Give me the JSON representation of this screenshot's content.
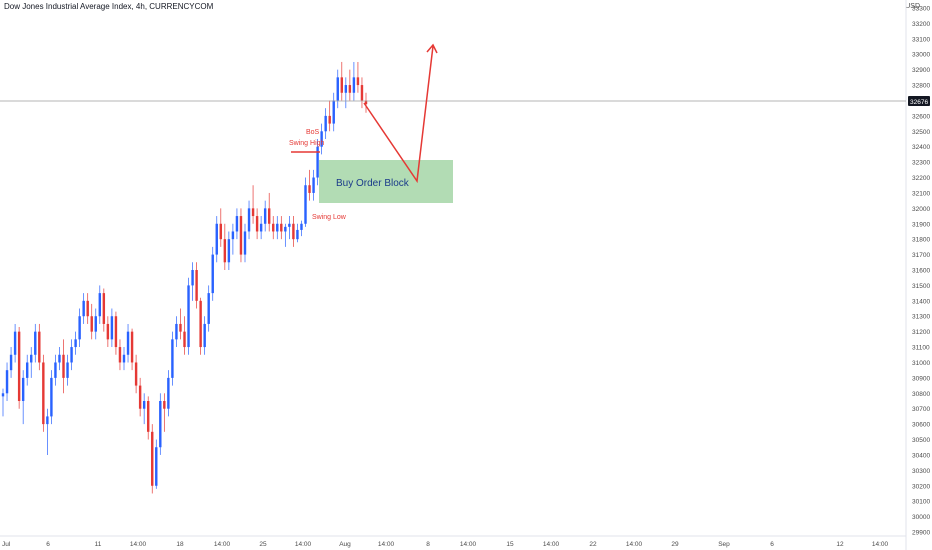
{
  "header": {
    "title": "Dow Jones Industrial Average Index, 4h, CURRENCYCOM",
    "currency": "USD"
  },
  "colors": {
    "up": "#2962ff",
    "down": "#e53935",
    "order_block_fill": "#a5d6a7",
    "annotation": "#e53935",
    "current_price_line": "#9e9e9e",
    "current_price_tag": "#131722"
  },
  "chart_data": {
    "type": "candlestick",
    "symbol": "Dow Jones Industrial Average Index",
    "timeframe": "4h",
    "ylim": [
      29900,
      33300
    ],
    "y_ticks": [
      "33300",
      "33200",
      "33100",
      "33000",
      "32900",
      "32800",
      "32700",
      "32600",
      "32500",
      "32400",
      "32300",
      "32200",
      "32100",
      "32000",
      "31900",
      "31800",
      "31700",
      "31600",
      "31500",
      "31400",
      "31300",
      "31200",
      "31100",
      "31000",
      "30900",
      "30800",
      "30700",
      "30600",
      "30500",
      "30400",
      "30300",
      "30200",
      "30100",
      "30000",
      "29900"
    ],
    "x_ticks": [
      "Jul",
      "6",
      "11",
      "14:00",
      "18",
      "14:00",
      "25",
      "14:00",
      "Aug",
      "14:00",
      "8",
      "14:00",
      "15",
      "14:00",
      "22",
      "14:00",
      "29",
      "Sep",
      "6",
      "12",
      "14:00"
    ],
    "current_price": 32676,
    "current_price_label": "32676",
    "candles_approx": [
      [
        30780,
        30830,
        30650,
        30800
      ],
      [
        30800,
        31000,
        30750,
        30950
      ],
      [
        30950,
        31100,
        30900,
        31050
      ],
      [
        31050,
        31250,
        31000,
        31200
      ],
      [
        31200,
        31230,
        30700,
        30750
      ],
      [
        30750,
        30950,
        30600,
        30900
      ],
      [
        30900,
        31050,
        30850,
        31000
      ],
      [
        31000,
        31100,
        30900,
        31050
      ],
      [
        31050,
        31250,
        31000,
        31200
      ],
      [
        31200,
        31250,
        30950,
        31000
      ],
      [
        31000,
        31050,
        30550,
        30600
      ],
      [
        30600,
        30700,
        30400,
        30650
      ],
      [
        30650,
        30950,
        30600,
        30900
      ],
      [
        30900,
        31050,
        30850,
        31000
      ],
      [
        31000,
        31100,
        30950,
        31050
      ],
      [
        31050,
        31150,
        30800,
        30900
      ],
      [
        30900,
        31050,
        30850,
        31000
      ],
      [
        31000,
        31150,
        30950,
        31100
      ],
      [
        31100,
        31200,
        31050,
        31150
      ],
      [
        31150,
        31350,
        31100,
        31300
      ],
      [
        31300,
        31450,
        31250,
        31400
      ],
      [
        31400,
        31450,
        31250,
        31300
      ],
      [
        31300,
        31380,
        31150,
        31200
      ],
      [
        31200,
        31350,
        31150,
        31300
      ],
      [
        31300,
        31500,
        31250,
        31450
      ],
      [
        31450,
        31480,
        31200,
        31250
      ],
      [
        31250,
        31300,
        31100,
        31150
      ],
      [
        31150,
        31350,
        31100,
        31300
      ],
      [
        31300,
        31330,
        31050,
        31100
      ],
      [
        31100,
        31150,
        30950,
        31000
      ],
      [
        31000,
        31100,
        30950,
        31050
      ],
      [
        31050,
        31250,
        31000,
        31200
      ],
      [
        31200,
        31220,
        30950,
        31000
      ],
      [
        31000,
        31050,
        30800,
        30850
      ],
      [
        30850,
        30900,
        30650,
        30700
      ],
      [
        30700,
        30800,
        30600,
        30750
      ],
      [
        30750,
        30780,
        30500,
        30550
      ],
      [
        30550,
        30600,
        30150,
        30200
      ],
      [
        30200,
        30500,
        30180,
        30450
      ],
      [
        30450,
        30800,
        30400,
        30750
      ],
      [
        30750,
        30800,
        30550,
        30700
      ],
      [
        30700,
        30950,
        30650,
        30900
      ],
      [
        30900,
        31200,
        30850,
        31150
      ],
      [
        31150,
        31300,
        31100,
        31250
      ],
      [
        31250,
        31350,
        31150,
        31200
      ],
      [
        31200,
        31300,
        31050,
        31100
      ],
      [
        31100,
        31550,
        31050,
        31500
      ],
      [
        31500,
        31650,
        31400,
        31600
      ],
      [
        31600,
        31650,
        31350,
        31400
      ],
      [
        31400,
        31420,
        31050,
        31100
      ],
      [
        31100,
        31300,
        31050,
        31250
      ],
      [
        31250,
        31500,
        31200,
        31450
      ],
      [
        31450,
        31750,
        31400,
        31700
      ],
      [
        31700,
        31950,
        31650,
        31900
      ],
      [
        31900,
        32000,
        31750,
        31800
      ],
      [
        31800,
        31900,
        31600,
        31650
      ],
      [
        31650,
        31850,
        31600,
        31800
      ],
      [
        31800,
        31900,
        31700,
        31850
      ],
      [
        31850,
        32000,
        31800,
        31950
      ],
      [
        31950,
        32000,
        31650,
        31700
      ],
      [
        31700,
        31900,
        31650,
        31850
      ],
      [
        31850,
        32050,
        31800,
        32000
      ],
      [
        32000,
        32150,
        31900,
        31950
      ],
      [
        31950,
        32000,
        31800,
        31850
      ],
      [
        31850,
        31950,
        31800,
        31900
      ],
      [
        31900,
        32050,
        31850,
        32000
      ],
      [
        32000,
        32100,
        31850,
        31900
      ],
      [
        31900,
        31950,
        31800,
        31850
      ],
      [
        31850,
        31950,
        31800,
        31900
      ],
      [
        31900,
        31950,
        31800,
        31850
      ],
      [
        31850,
        31900,
        31750,
        31880
      ],
      [
        31880,
        31950,
        31800,
        31900
      ],
      [
        31900,
        31950,
        31750,
        31800
      ],
      [
        31800,
        31900,
        31780,
        31860
      ],
      [
        31860,
        31920,
        31820,
        31900
      ],
      [
        31900,
        32200,
        31880,
        32150
      ],
      [
        32150,
        32250,
        32050,
        32100
      ],
      [
        32100,
        32250,
        32050,
        32200
      ],
      [
        32200,
        32450,
        32150,
        32400
      ],
      [
        32400,
        32550,
        32350,
        32500
      ],
      [
        32500,
        32650,
        32450,
        32600
      ],
      [
        32600,
        32700,
        32500,
        32550
      ],
      [
        32550,
        32750,
        32500,
        32700
      ],
      [
        32700,
        32900,
        32650,
        32850
      ],
      [
        32850,
        32950,
        32700,
        32750
      ],
      [
        32750,
        32850,
        32650,
        32800
      ],
      [
        32800,
        32900,
        32700,
        32750
      ],
      [
        32750,
        32950,
        32700,
        32850
      ],
      [
        32850,
        32950,
        32750,
        32800
      ],
      [
        32800,
        32850,
        32650,
        32700
      ],
      [
        32700,
        32750,
        32620,
        32676
      ]
    ]
  },
  "annotations": {
    "bos": "BoS",
    "swing_high": "Swing High",
    "swing_low": "Swing Low",
    "order_block": "Buy Order Block"
  }
}
